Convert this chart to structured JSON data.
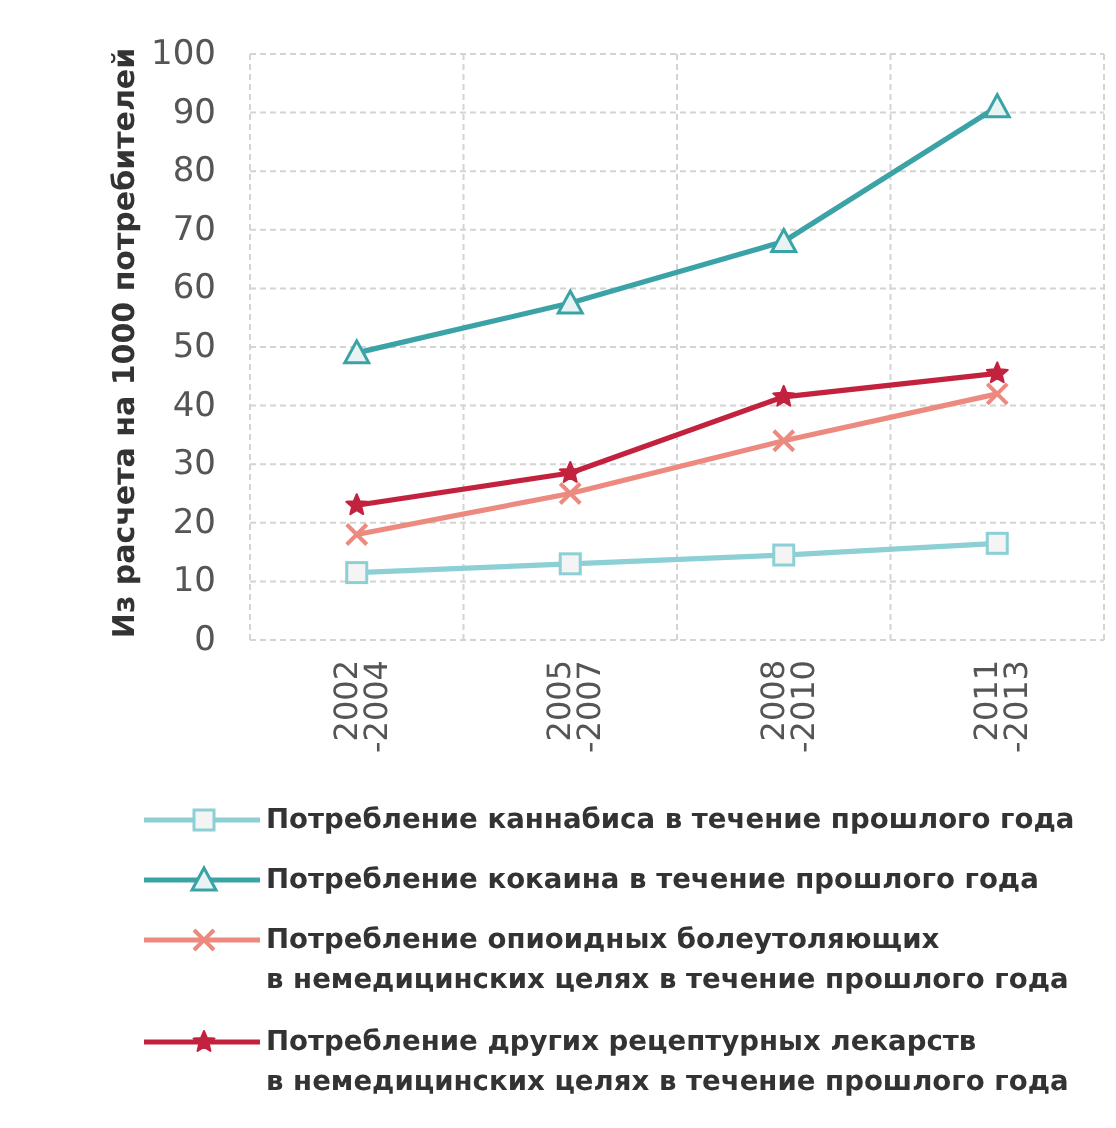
{
  "chart_data": {
    "type": "line",
    "ylabel": "Из расчета на 1000 потребителей",
    "categories": [
      "2002-2004",
      "2005-2007",
      "2008-2010",
      "2011-2013"
    ],
    "series": [
      {
        "name": "Потребление каннабиса в течение прошлого года",
        "color": "#8ccfd4",
        "marker": "square",
        "values": [
          11.5,
          13,
          14.5,
          16.5
        ]
      },
      {
        "name": "Потребление кокаина в течение прошлого года",
        "color": "#3ba3a6",
        "marker": "triangle",
        "values": [
          49,
          57.5,
          68,
          91
        ]
      },
      {
        "name": "Потребление опиоидных болеутоляющих\nв немедицинских целях в течение прошлого года",
        "color": "#ec8a80",
        "marker": "cross",
        "values": [
          18,
          25,
          34,
          42
        ]
      },
      {
        "name": "Потребление других рецептурных лекарств\nв немедицинских целях в течение прошлого года",
        "color": "#c3223f",
        "marker": "star",
        "values": [
          23,
          28.5,
          41.5,
          45.5
        ]
      }
    ],
    "ylim": [
      0,
      100
    ],
    "yticks": [
      0,
      10,
      20,
      30,
      40,
      50,
      60,
      70,
      80,
      90,
      100
    ],
    "grid": true,
    "legend": "bottom"
  }
}
